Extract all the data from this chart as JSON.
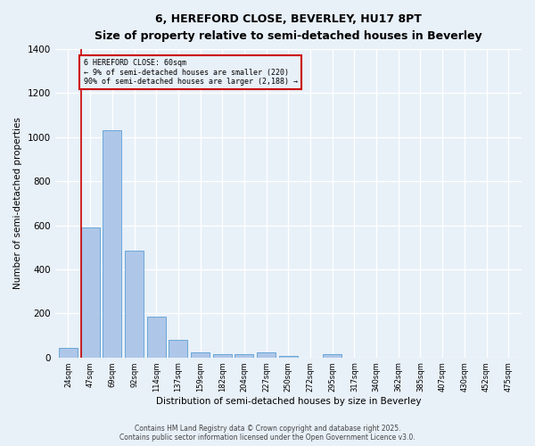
{
  "title_line1": "6, HEREFORD CLOSE, BEVERLEY, HU17 8PT",
  "title_line2": "Size of property relative to semi-detached houses in Beverley",
  "xlabel": "Distribution of semi-detached houses by size in Beverley",
  "ylabel": "Number of semi-detached properties",
  "bin_labels": [
    "24sqm",
    "47sqm",
    "69sqm",
    "92sqm",
    "114sqm",
    "137sqm",
    "159sqm",
    "182sqm",
    "204sqm",
    "227sqm",
    "250sqm",
    "272sqm",
    "295sqm",
    "317sqm",
    "340sqm",
    "362sqm",
    "385sqm",
    "407sqm",
    "430sqm",
    "452sqm",
    "475sqm"
  ],
  "bar_values": [
    45,
    590,
    1030,
    485,
    185,
    80,
    25,
    15,
    15,
    25,
    5,
    0,
    15,
    0,
    0,
    0,
    0,
    0,
    0,
    0,
    0
  ],
  "bar_color": "#aec6e8",
  "bar_edge_color": "#5a9fd4",
  "vline_x": 0.575,
  "vline_color": "#cc0000",
  "annotation_title": "6 HEREFORD CLOSE: 60sqm",
  "annotation_line1": "← 9% of semi-detached houses are smaller (220)",
  "annotation_line2": "90% of semi-detached houses are larger (2,188) →",
  "annotation_box_color": "#cc0000",
  "ylim": [
    0,
    1400
  ],
  "yticks": [
    0,
    200,
    400,
    600,
    800,
    1000,
    1200,
    1400
  ],
  "bg_color": "#e8f0f8",
  "grid_color": "#ffffff",
  "footer_line1": "Contains HM Land Registry data © Crown copyright and database right 2025.",
  "footer_line2": "Contains public sector information licensed under the Open Government Licence v3.0."
}
